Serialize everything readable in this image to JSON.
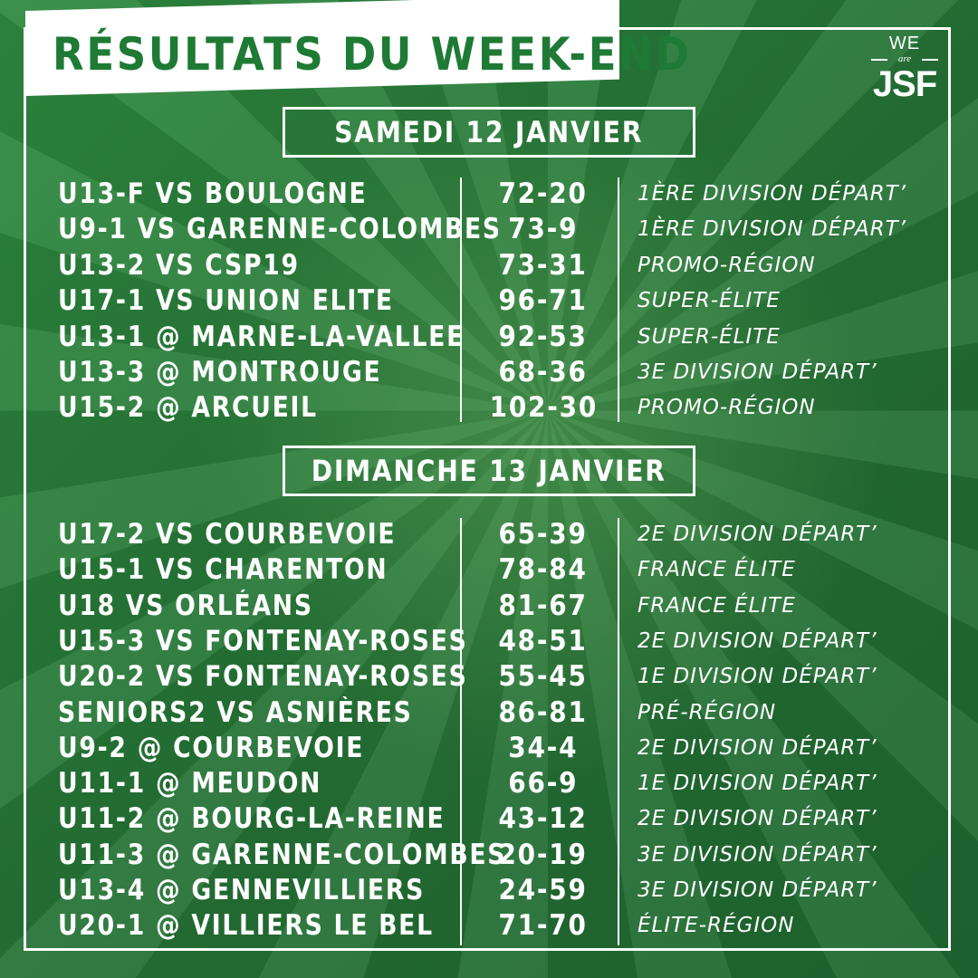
{
  "title": "RÉSULTATS DU WEEK-END",
  "logo": {
    "we": "WE",
    "are": "are",
    "jsf": "JSF"
  },
  "saturday": {
    "heading": "SAMEDI 12 JANVIER",
    "results": [
      {
        "match": "U13-F VS BOULOGNE",
        "score": "72-20",
        "division": "1ÈRE DIVISION DÉPART’"
      },
      {
        "match": "U9-1 VS GARENNE-COLOMBES",
        "score": "73-9",
        "division": "1ÈRE DIVISION DÉPART’"
      },
      {
        "match": "U13-2 VS CSP19",
        "score": "73-31",
        "division": "PROMO-RÉGION"
      },
      {
        "match": "U17-1 VS UNION ELITE",
        "score": "96-71",
        "division": "SUPER-ÉLITE"
      },
      {
        "match": "U13-1 @ MARNE-LA-VALLEE",
        "score": "92-53",
        "division": "SUPER-ÉLITE"
      },
      {
        "match": "U13-3 @ MONTROUGE",
        "score": "68-36",
        "division": "3E DIVISION DÉPART’"
      },
      {
        "match": "U15-2 @ ARCUEIL",
        "score": "102-30",
        "division": "PROMO-RÉGION"
      }
    ]
  },
  "sunday": {
    "heading": "DIMANCHE 13 JANVIER",
    "results": [
      {
        "match": "U17-2 VS COURBEVOIE",
        "score": "65-39",
        "division": "2E DIVISION DÉPART’"
      },
      {
        "match": "U15-1 VS CHARENTON",
        "score": "78-84",
        "division": "FRANCE ÉLITE"
      },
      {
        "match": "U18 VS ORLÉANS",
        "score": "81-67",
        "division": "FRANCE ÉLITE"
      },
      {
        "match": "U15-3 VS FONTENAY-ROSES",
        "score": "48-51",
        "division": "2E DIVISION DÉPART’"
      },
      {
        "match": "U20-2 VS FONTENAY-ROSES",
        "score": "55-45",
        "division": "1E DIVISION DÉPART’"
      },
      {
        "match": "SENIORS2 VS ASNIÈRES",
        "score": "86-81",
        "division": "PRÉ-RÉGION"
      },
      {
        "match": "U9-2 @ COURBEVOIE",
        "score": "34-4",
        "division": "2E DIVISION DÉPART’"
      },
      {
        "match": "U11-1 @ MEUDON",
        "score": "66-9",
        "division": "1E DIVISION DÉPART’"
      },
      {
        "match": "U11-2 @ BOURG-LA-REINE",
        "score": "43-12",
        "division": "2E DIVISION DÉPART’"
      },
      {
        "match": "U11-3 @ GARENNE-COLOMBES",
        "score": "20-19",
        "division": "3E DIVISION DÉPART’"
      },
      {
        "match": "U13-4 @ GENNEVILLIERS",
        "score": "24-59",
        "division": "3E DIVISION DÉPART’"
      },
      {
        "match": "U20-1 @ VILLIERS LE BEL",
        "score": "71-70",
        "division": "ÉLITE-RÉGION"
      }
    ]
  },
  "colors": {
    "background": "#2d7a3a",
    "title_text": "#1e7a34",
    "foreground": "#ffffff"
  }
}
